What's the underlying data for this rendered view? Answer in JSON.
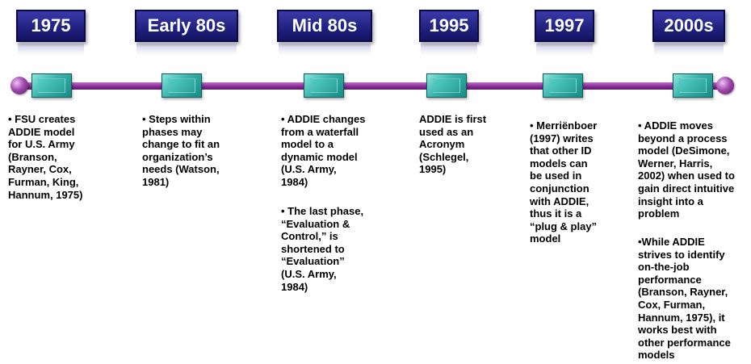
{
  "eras": [
    {
      "label": "1975"
    },
    {
      "label": "Early 80s"
    },
    {
      "label": "Mid 80s"
    },
    {
      "label": "1995"
    },
    {
      "label": "1997"
    },
    {
      "label": "2000s"
    }
  ],
  "notes": [
    {
      "paragraphs": [
        "• FSU creates\nADDIE model\nfor U.S. Army\n(Branson,\nRayner, Cox,\nFurman, King,\nHannum, 1975)"
      ]
    },
    {
      "paragraphs": [
        "• Steps within\nphases may\nchange to fit an\norganization’s\nneeds (Watson,\n1981)"
      ]
    },
    {
      "paragraphs": [
        "• ADDIE changes\nfrom a waterfall\nmodel to a\ndynamic model\n(U.S. Army,\n1984)",
        "• The last phase,\n“Evaluation &\nControl,” is\nshortened to\n“Evaluation”\n(U.S. Army,\n1984)"
      ]
    },
    {
      "paragraphs": [
        "ADDIE is first\nused as an\nAcronym\n(Schlegel,\n1995)"
      ]
    },
    {
      "paragraphs": [
        "• Merriënboer\n(1997) writes\nthat other ID\nmodels can\nbe used in\nconjunction\nwith ADDIE,\nthus it is a\n“plug & play”\nmodel"
      ]
    },
    {
      "paragraphs": [
        "• ADDIE moves\nbeyond a process\nmodel (DeSimone,\nWerner, Harris,\n2002) when used to\ngain direct intuitive\ninsight into a\nproblem",
        "•While ADDIE\nstrives to identify\non-the-job\nperformance\n(Branson, Rayner,\nCox, Furman,\nHannum, 1975), it\nworks best with\nother performance\nmodels"
      ]
    }
  ],
  "colors": {
    "era_fill": "#1c1c78",
    "timeline": "#8b2c98",
    "marker": "#37b3ab"
  }
}
